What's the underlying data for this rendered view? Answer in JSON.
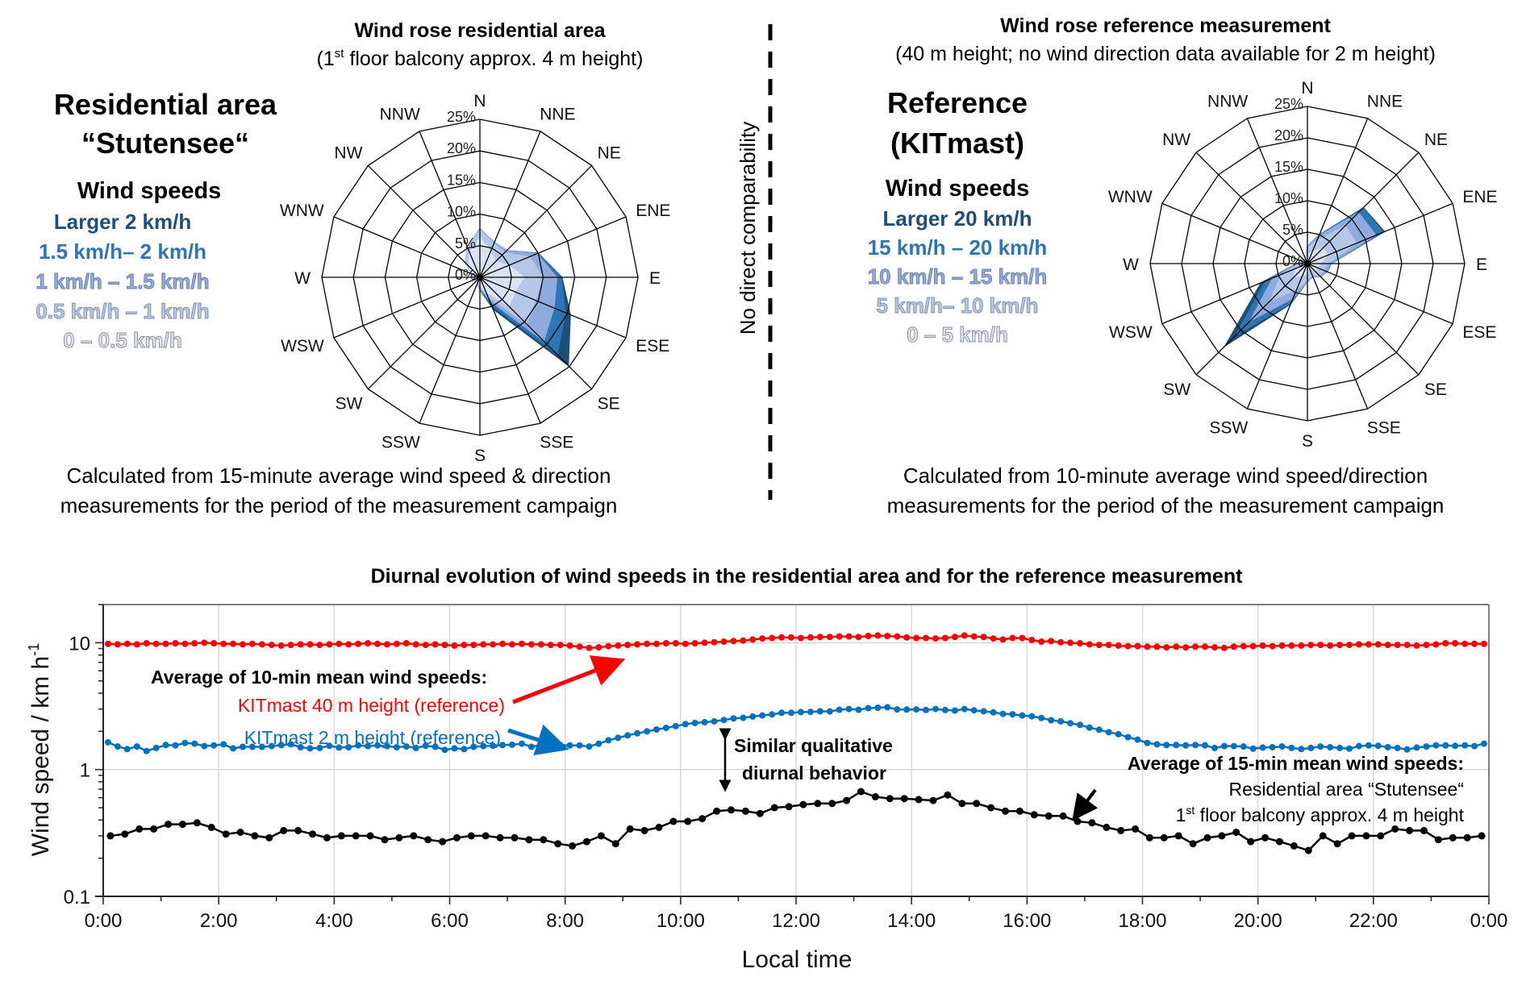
{
  "divider": {
    "label": "No direct comparability"
  },
  "left_panel": {
    "title": "Residential area",
    "title_line2": "“Stutensee“",
    "rose_title": "Wind rose residential area",
    "rose_subtitle_prefix": "(1",
    "rose_subtitle_sup": "st",
    "rose_subtitle_suffix": " floor balcony approx. 4 m height)",
    "legend_title": "Wind speeds",
    "caption_line1": "Calculated from 15-minute average wind speed & direction",
    "caption_line2": "measurements for the period of the measurement campaign"
  },
  "right_panel": {
    "title": "Reference",
    "title_line2": "(KITmast)",
    "rose_title": "Wind rose reference measurement",
    "rose_subtitle": "(40 m height; no wind direction data available for 2 m height)",
    "legend_title": "Wind speeds",
    "caption_line1": "Calculated from 10-minute average wind speed/direction",
    "caption_line2": "measurements for the period of the measurement campaign"
  },
  "colors": {
    "bin_fill": [
      "#DAE3F3",
      "#B4C7E7",
      "#8FAADC",
      "#2E75B6",
      "#1F4E79"
    ],
    "red": "#FF0000",
    "blue": "#0070C0",
    "black": "#000000"
  },
  "chart_data": [
    {
      "type": "radar",
      "id": "rose-residential",
      "title": "Wind rose residential area",
      "directions": [
        "N",
        "NNE",
        "NE",
        "ENE",
        "E",
        "ESE",
        "SE",
        "SSE",
        "S",
        "SSW",
        "SW",
        "WSW",
        "W",
        "WNW",
        "NW",
        "NNW"
      ],
      "radial_ticks": [
        "0%",
        "5%",
        "10%",
        "15%",
        "20%",
        "25%"
      ],
      "rmax": 25,
      "unit": "%",
      "legend": [
        "0 – 0.5 km/h",
        "0.5 km/h – 1 km/h",
        "1 km/h – 1.5 km/h",
        "1.5 km/h– 2 km/h",
        "Larger 2 km/h"
      ],
      "stacked_bins": [
        [
          6.3,
          1.2,
          0.2,
          0,
          0
        ],
        [
          4.5,
          1.3,
          0.2,
          0,
          0
        ],
        [
          3.5,
          2.0,
          0.5,
          0,
          0
        ],
        [
          5.0,
          3.5,
          1.3,
          0.2,
          0
        ],
        [
          7.0,
          3.0,
          2.2,
          0.6,
          0.2
        ],
        [
          6.0,
          3.5,
          3.2,
          2.0,
          0.8
        ],
        [
          6.5,
          4.0,
          3.8,
          3.0,
          2.5
        ],
        [
          2.5,
          0.8,
          0.7,
          0.8,
          0.7
        ],
        [
          1.2,
          0.4,
          0.2,
          0.1,
          0.1
        ],
        [
          0.7,
          0.2,
          0.1,
          0,
          0
        ],
        [
          0.6,
          0.2,
          0,
          0,
          0
        ],
        [
          0.6,
          0.2,
          0,
          0,
          0
        ],
        [
          0.8,
          0.2,
          0,
          0,
          0
        ],
        [
          1.2,
          0.3,
          0,
          0,
          0
        ],
        [
          2.6,
          0.7,
          0,
          0,
          0
        ],
        [
          4.3,
          0.9,
          0,
          0,
          0
        ]
      ]
    },
    {
      "type": "radar",
      "id": "rose-reference",
      "title": "Wind rose reference measurement",
      "directions": [
        "N",
        "NNE",
        "NE",
        "ENE",
        "E",
        "ESE",
        "SE",
        "SSE",
        "S",
        "SSW",
        "SW",
        "WSW",
        "W",
        "WNW",
        "NW",
        "NNW"
      ],
      "radial_ticks": [
        "0%",
        "5%",
        "10%",
        "15%",
        "20%",
        "25%"
      ],
      "rmax": 25,
      "unit": "%",
      "legend": [
        "0 – 5 km/h",
        "5 km/h– 10 km/h",
        "10 km/h – 15 km/h",
        "15 km/h – 20 km/h",
        "Larger 20 km/h"
      ],
      "stacked_bins": [
        [
          1.5,
          1.0,
          0.3,
          0,
          0
        ],
        [
          2.0,
          2.0,
          0.8,
          0.2,
          0
        ],
        [
          3.5,
          5.0,
          3.0,
          1.0,
          0.1
        ],
        [
          3.5,
          5.0,
          3.3,
          1.3,
          0.2
        ],
        [
          2.0,
          1.2,
          0.5,
          0.1,
          0
        ],
        [
          1.8,
          1.0,
          0.5,
          0.1,
          0
        ],
        [
          1.5,
          1.2,
          0.3,
          0,
          0
        ],
        [
          1.0,
          1.0,
          0.3,
          0,
          0
        ],
        [
          1.6,
          1.0,
          0.3,
          0,
          0
        ],
        [
          2.0,
          2.5,
          1.5,
          0.8,
          0.2
        ],
        [
          3.0,
          5.5,
          4.5,
          3.2,
          2.4
        ],
        [
          2.0,
          2.5,
          1.5,
          1.2,
          0.8
        ],
        [
          0.8,
          0.6,
          0.2,
          0.1,
          0
        ],
        [
          0.6,
          0.3,
          0,
          0,
          0
        ],
        [
          0.5,
          0.2,
          0,
          0,
          0
        ],
        [
          0.5,
          0.3,
          0,
          0,
          0
        ]
      ]
    },
    {
      "type": "line",
      "id": "diurnal",
      "title": "Diurnal evolution of wind speeds in the residential area and for the reference measurement",
      "xlabel": "Local time",
      "ylabel": "Wind speed / km h",
      "ylabel_sup": "-1",
      "yscale": "log",
      "ylim": [
        0.1,
        20
      ],
      "xlim_hours": [
        0,
        24
      ],
      "x_tick_labels": [
        "0:00",
        "2:00",
        "4:00",
        "6:00",
        "8:00",
        "10:00",
        "12:00",
        "14:00",
        "16:00",
        "18:00",
        "20:00",
        "22:00",
        "0:00"
      ],
      "y_tick_labels": [
        "0.1",
        "1",
        "10"
      ],
      "grid": true,
      "annotations": {
        "ref_heading": "Average of 10-min mean wind speeds:",
        "red_label": "KITmast 40 m height (reference)",
        "blue_label": "KITmast 2 m height (reference)",
        "similar_line1": "Similar qualitative",
        "similar_line2": "diurnal behavior",
        "res_heading": "Average of 15-min mean wind speeds:",
        "res_line1": "Residential area “Stutensee“",
        "res_line2_prefix": "1",
        "res_line2_sup": "st",
        "res_line2_suffix": " floor balcony approx. 4 m height"
      },
      "series": [
        {
          "name": "KITmast 40 m height (reference)",
          "color": "#FF0000",
          "interval_minutes": 10,
          "values": [
            9.8,
            9.7,
            9.8,
            9.7,
            9.9,
            9.8,
            9.8,
            9.9,
            9.8,
            9.9,
            10.0,
            9.9,
            9.8,
            9.8,
            9.7,
            9.8,
            9.7,
            9.6,
            9.5,
            9.6,
            9.7,
            9.7,
            9.6,
            9.7,
            9.8,
            9.7,
            9.8,
            9.9,
            9.8,
            9.7,
            9.8,
            9.9,
            9.7,
            9.6,
            9.7,
            9.6,
            9.5,
            9.6,
            9.6,
            9.7,
            9.7,
            9.8,
            9.7,
            9.8,
            9.7,
            9.7,
            9.6,
            9.6,
            9.5,
            9.3,
            9.1,
            9.2,
            9.4,
            9.5,
            9.6,
            9.7,
            9.8,
            9.8,
            9.9,
            9.9,
            9.8,
            9.9,
            10.0,
            10.1,
            10.2,
            10.3,
            10.4,
            10.6,
            10.8,
            10.9,
            11.0,
            11.0,
            10.9,
            11.0,
            11.1,
            11.1,
            11.2,
            11.2,
            11.1,
            11.3,
            11.4,
            11.3,
            11.2,
            11.0,
            10.9,
            10.9,
            10.8,
            10.9,
            11.1,
            11.4,
            11.2,
            11.1,
            10.8,
            10.6,
            10.9,
            10.9,
            10.5,
            10.2,
            10.3,
            10.1,
            10.0,
            9.9,
            9.7,
            9.6,
            9.6,
            9.5,
            9.4,
            9.4,
            9.3,
            9.3,
            9.2,
            9.3,
            9.2,
            9.3,
            9.3,
            9.2,
            9.1,
            9.3,
            9.4,
            9.4,
            9.5,
            9.4,
            9.5,
            9.5,
            9.5,
            9.6,
            9.6,
            9.5,
            9.6,
            9.6,
            9.7,
            9.7,
            9.7,
            9.6,
            9.6,
            9.6,
            9.5,
            9.6,
            9.7,
            9.9,
            9.9,
            9.8,
            9.8,
            9.8
          ]
        },
        {
          "name": "KITmast 2 m height (reference)",
          "color": "#0070C0",
          "interval_minutes": 10,
          "values": [
            1.64,
            1.52,
            1.45,
            1.52,
            1.4,
            1.48,
            1.56,
            1.55,
            1.62,
            1.6,
            1.53,
            1.55,
            1.58,
            1.47,
            1.51,
            1.51,
            1.51,
            1.53,
            1.56,
            1.58,
            1.5,
            1.47,
            1.48,
            1.54,
            1.49,
            1.5,
            1.55,
            1.53,
            1.55,
            1.53,
            1.5,
            1.52,
            1.48,
            1.54,
            1.51,
            1.43,
            1.47,
            1.45,
            1.51,
            1.53,
            1.54,
            1.56,
            1.57,
            1.6,
            1.51,
            1.57,
            1.58,
            1.56,
            1.55,
            1.55,
            1.52,
            1.6,
            1.7,
            1.78,
            1.86,
            1.93,
            2.0,
            2.07,
            2.13,
            2.2,
            2.28,
            2.33,
            2.36,
            2.4,
            2.46,
            2.53,
            2.56,
            2.62,
            2.67,
            2.72,
            2.8,
            2.8,
            2.84,
            2.85,
            2.88,
            2.87,
            2.96,
            3.0,
            2.96,
            3.05,
            3.07,
            3.1,
            2.98,
            2.97,
            2.98,
            2.95,
            3.0,
            2.95,
            2.92,
            3.0,
            2.93,
            2.88,
            2.82,
            2.75,
            2.73,
            2.67,
            2.63,
            2.55,
            2.45,
            2.4,
            2.32,
            2.25,
            2.14,
            2.06,
            1.97,
            1.9,
            1.8,
            1.72,
            1.62,
            1.58,
            1.56,
            1.56,
            1.55,
            1.56,
            1.55,
            1.48,
            1.53,
            1.53,
            1.52,
            1.46,
            1.49,
            1.5,
            1.52,
            1.48,
            1.45,
            1.48,
            1.52,
            1.5,
            1.48,
            1.46,
            1.53,
            1.55,
            1.54,
            1.5,
            1.48,
            1.44,
            1.49,
            1.52,
            1.55,
            1.55,
            1.54,
            1.55,
            1.53,
            1.6
          ]
        },
        {
          "name": "Residential area “Stutensee“ 1st floor balcony approx. 4 m height",
          "color": "#000000",
          "interval_minutes": 15,
          "values": [
            0.3,
            0.31,
            0.34,
            0.34,
            0.37,
            0.37,
            0.38,
            0.35,
            0.31,
            0.32,
            0.3,
            0.29,
            0.33,
            0.33,
            0.31,
            0.29,
            0.3,
            0.3,
            0.3,
            0.28,
            0.29,
            0.3,
            0.28,
            0.27,
            0.29,
            0.3,
            0.3,
            0.29,
            0.29,
            0.28,
            0.28,
            0.26,
            0.25,
            0.27,
            0.3,
            0.26,
            0.34,
            0.33,
            0.35,
            0.39,
            0.39,
            0.41,
            0.47,
            0.48,
            0.47,
            0.45,
            0.5,
            0.51,
            0.53,
            0.54,
            0.54,
            0.57,
            0.67,
            0.61,
            0.59,
            0.59,
            0.58,
            0.57,
            0.63,
            0.54,
            0.54,
            0.5,
            0.47,
            0.47,
            0.44,
            0.43,
            0.43,
            0.39,
            0.38,
            0.35,
            0.33,
            0.34,
            0.29,
            0.29,
            0.3,
            0.26,
            0.29,
            0.3,
            0.32,
            0.27,
            0.29,
            0.27,
            0.25,
            0.23,
            0.3,
            0.26,
            0.3,
            0.3,
            0.3,
            0.34,
            0.33,
            0.33,
            0.28,
            0.29,
            0.29,
            0.3
          ]
        }
      ]
    }
  ]
}
